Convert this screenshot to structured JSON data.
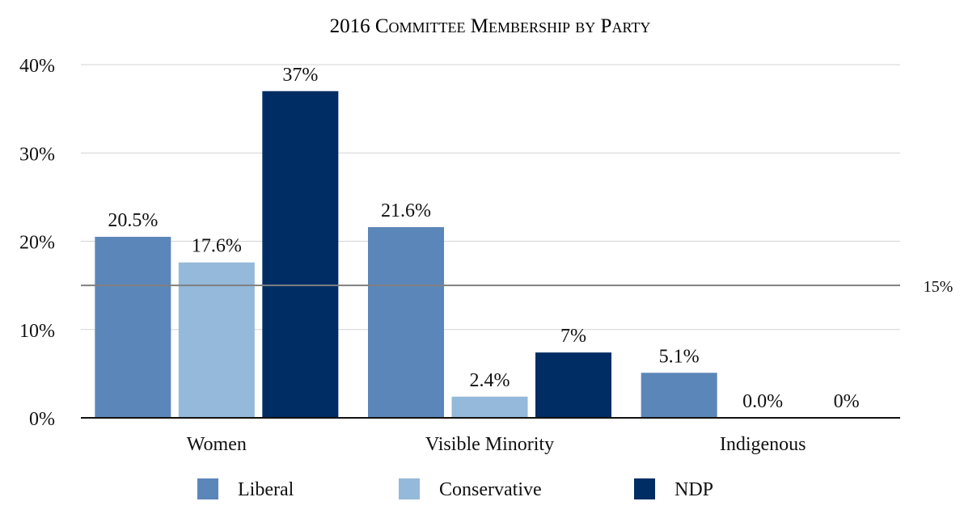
{
  "chart_data": {
    "type": "bar",
    "title": "2016 Committee Membership by Party",
    "categories": [
      "Women",
      "Visible Minority",
      "Indigenous"
    ],
    "series": [
      {
        "name": "Liberal",
        "color": "#5b86b9",
        "values": [
          20.5,
          21.6,
          5.1
        ],
        "labels": [
          "20.5%",
          "21.6%",
          "5.1%"
        ]
      },
      {
        "name": "Conservative",
        "color": "#94b9da",
        "values": [
          17.6,
          2.4,
          0.0
        ],
        "labels": [
          "17.6%",
          "2.4%",
          "0.0%"
        ]
      },
      {
        "name": "NDP",
        "color": "#002d64",
        "values": [
          37,
          7.4,
          0
        ],
        "labels": [
          "37%",
          "7%",
          "0%"
        ]
      }
    ],
    "ylim": [
      0,
      40
    ],
    "yticks": [
      0,
      10,
      20,
      30,
      40
    ],
    "ytick_labels": [
      "0%",
      "10%",
      "20%",
      "30%",
      "40%"
    ],
    "reference_line": {
      "value": 15,
      "label": "15%",
      "color": "#808080"
    },
    "grid": true,
    "legend_placement": "bottom"
  }
}
